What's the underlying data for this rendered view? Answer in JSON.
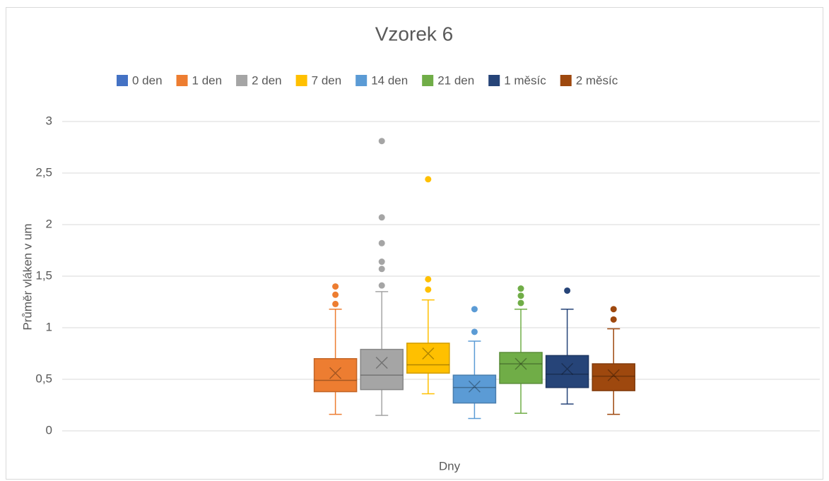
{
  "chart_data": {
    "type": "box",
    "title": "Vzorek 6",
    "y_label": "Průměr vláken v um",
    "x_label": "Dny",
    "ylim": [
      0,
      3
    ],
    "yticks": [
      0,
      {
        "value": 0.5,
        "label": "0,5"
      },
      1,
      {
        "value": 1.5,
        "label": "1,5"
      },
      2,
      {
        "value": 2.5,
        "label": "2,5"
      },
      3
    ],
    "grid": true,
    "legend": "top",
    "series": [
      {
        "name": "0 den",
        "color": "#4472c4"
      },
      {
        "name": "1 den",
        "color": "#ed7d31",
        "min": 0.16,
        "q1": 0.38,
        "median": 0.49,
        "q3": 0.7,
        "max": 1.18,
        "mean": 0.56,
        "outliers": [
          1.4,
          1.32,
          1.23
        ]
      },
      {
        "name": "2 den",
        "color": "#a5a5a5",
        "min": 0.15,
        "q1": 0.4,
        "median": 0.54,
        "q3": 0.79,
        "max": 1.35,
        "mean": 0.66,
        "outliers": [
          2.81,
          2.07,
          1.82,
          1.64,
          1.57,
          1.41
        ]
      },
      {
        "name": "7 den",
        "color": "#ffc000",
        "min": 0.36,
        "q1": 0.56,
        "median": 0.64,
        "q3": 0.85,
        "max": 1.27,
        "mean": 0.75,
        "outliers": [
          2.44,
          1.47,
          1.37
        ]
      },
      {
        "name": "14 den",
        "color": "#5b9bd5",
        "min": 0.12,
        "q1": 0.27,
        "median": 0.42,
        "q3": 0.54,
        "max": 0.87,
        "mean": 0.43,
        "outliers": [
          1.18,
          0.96
        ]
      },
      {
        "name": "21 den",
        "color": "#70ad47",
        "min": 0.17,
        "q1": 0.46,
        "median": 0.65,
        "q3": 0.76,
        "max": 1.18,
        "mean": 0.65,
        "outliers": [
          1.38,
          1.31,
          1.24
        ]
      },
      {
        "name": "1 měsíc",
        "color": "#264478",
        "min": 0.26,
        "q1": 0.42,
        "median": 0.55,
        "q3": 0.73,
        "max": 1.18,
        "mean": 0.6,
        "outliers": [
          1.36
        ]
      },
      {
        "name": "2 měsíc",
        "color": "#9e480e",
        "min": 0.16,
        "q1": 0.39,
        "median": 0.53,
        "q3": 0.65,
        "max": 0.99,
        "mean": 0.54,
        "outliers": [
          1.18,
          1.08
        ]
      }
    ]
  }
}
